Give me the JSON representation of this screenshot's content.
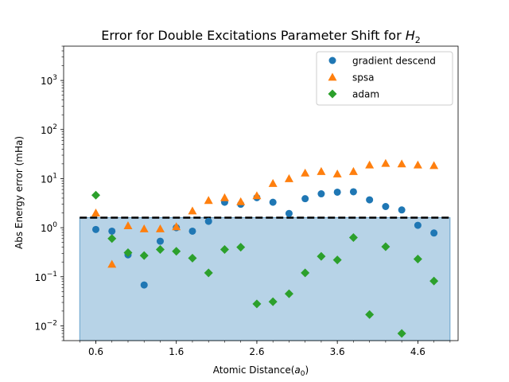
{
  "chart_data": {
    "type": "scatter",
    "title": "Error for Double Excitations Parameter Shift for ",
    "title_math": "H",
    "title_math_sub": "2",
    "xlabel": "Atomic Distance(",
    "xlabel_math": "a",
    "xlabel_math_sub": "0",
    "xlabel_suffix": ")",
    "ylabel": "Abs Energy error (mHa)",
    "y_scale": "log",
    "xlim": [
      0.2,
      5.1
    ],
    "ylim": [
      0.005,
      5000
    ],
    "x_ticks": [
      {
        "value": 0.6,
        "label": "0.6"
      },
      {
        "value": 1.6,
        "label": "1.6"
      },
      {
        "value": 2.6,
        "label": "2.6"
      },
      {
        "value": 3.6,
        "label": "3.6"
      },
      {
        "value": 4.6,
        "label": "4.6"
      }
    ],
    "y_ticks": [
      {
        "value": 0.01,
        "base": "10",
        "exp": "−2"
      },
      {
        "value": 0.1,
        "base": "10",
        "exp": "−1"
      },
      {
        "value": 1,
        "base": "10",
        "exp": "0"
      },
      {
        "value": 10,
        "base": "10",
        "exp": "1"
      },
      {
        "value": 100,
        "base": "10",
        "exp": "2"
      },
      {
        "value": 1000,
        "base": "10",
        "exp": "3"
      }
    ],
    "grid": false,
    "legend_position": "top-right",
    "threshold": {
      "value": 1.6,
      "style": "dashed",
      "color": "#000000"
    },
    "shaded_region": {
      "x_range": [
        0.4,
        5.0
      ],
      "y_max": 1.6,
      "color": "#1f77b4",
      "alpha": 0.32
    },
    "series": [
      {
        "name": "gradient descend",
        "marker": "circle",
        "color": "#1f77b4",
        "x": [
          0.6,
          0.8,
          1.0,
          1.2,
          1.4,
          1.6,
          1.8,
          2.0,
          2.2,
          2.4,
          2.6,
          2.8,
          3.0,
          3.2,
          3.4,
          3.6,
          3.8,
          4.0,
          4.2,
          4.4,
          4.6,
          4.8
        ],
        "y": [
          0.92,
          0.85,
          0.28,
          0.068,
          0.53,
          1.0,
          0.85,
          1.35,
          3.3,
          3.0,
          4.1,
          3.3,
          1.95,
          3.9,
          4.9,
          5.3,
          5.4,
          3.7,
          2.7,
          2.3,
          1.12,
          0.78
        ]
      },
      {
        "name": "spsa",
        "marker": "triangle",
        "color": "#ff7f0e",
        "x": [
          0.6,
          0.8,
          1.0,
          1.2,
          1.4,
          1.6,
          1.8,
          2.0,
          2.2,
          2.4,
          2.6,
          2.8,
          3.0,
          3.2,
          3.4,
          3.6,
          3.8,
          4.0,
          4.2,
          4.4,
          4.6,
          4.8
        ],
        "y": [
          2.0,
          0.18,
          1.1,
          0.95,
          0.95,
          1.05,
          2.2,
          3.6,
          4.1,
          3.4,
          4.5,
          8.0,
          10.0,
          13.0,
          14.0,
          12.5,
          14.0,
          19.0,
          20.5,
          20.0,
          19.0,
          18.5
        ]
      },
      {
        "name": "adam",
        "marker": "diamond",
        "color": "#2ca02c",
        "x": [
          0.6,
          0.8,
          1.0,
          1.2,
          1.4,
          1.6,
          1.8,
          2.0,
          2.2,
          2.4,
          2.6,
          2.8,
          3.0,
          3.2,
          3.4,
          3.6,
          3.8,
          4.0,
          4.2,
          4.4,
          4.6,
          4.8
        ],
        "y": [
          4.6,
          0.6,
          0.31,
          0.27,
          0.36,
          0.33,
          0.24,
          0.12,
          0.36,
          0.4,
          0.028,
          0.031,
          0.045,
          0.12,
          0.26,
          0.22,
          0.63,
          0.017,
          0.41,
          0.007,
          0.23,
          0.082
        ]
      }
    ]
  }
}
